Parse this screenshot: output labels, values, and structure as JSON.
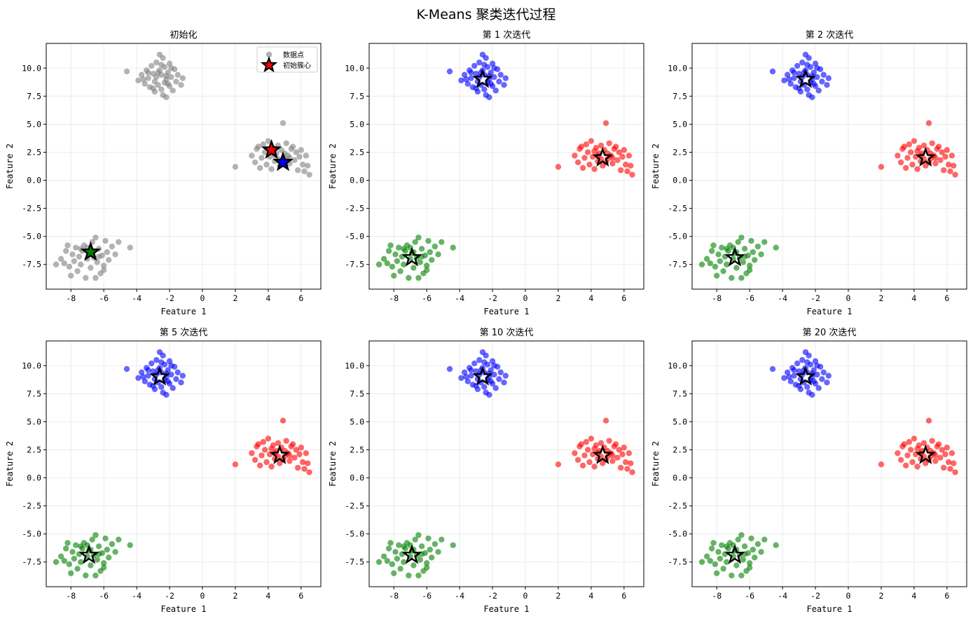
{
  "figure_title": "K-Means 聚类迭代过程",
  "colors": {
    "cluster_0": "#ff0000",
    "cluster_1": "#0000ff",
    "cluster_2": "#008000",
    "uncolored": "#808080",
    "centroid_edge": "#000000",
    "grid": "#e6e6e6"
  },
  "chart_data": [
    {
      "type": "scatter",
      "title": "初始化",
      "xlabel": "Feature 1",
      "ylabel": "Feature 2",
      "xlim": [
        -9.5,
        7.2
      ],
      "ylim": [
        -9.7,
        12.2
      ],
      "xticks": [
        -8,
        -6,
        -4,
        -2,
        0,
        2,
        4,
        6
      ],
      "yticks": [
        -7.5,
        -5.0,
        -2.5,
        0.0,
        2.5,
        5.0,
        7.5,
        10.0
      ],
      "grid": true,
      "legend": {
        "position": "top-right",
        "entries": [
          "数据点",
          "初始簇心"
        ]
      },
      "points_colored": false,
      "centroids": [
        {
          "cluster": 0,
          "x": 4.2,
          "y": 2.7,
          "filled": true
        },
        {
          "cluster": 1,
          "x": 4.9,
          "y": 1.6,
          "filled": true
        },
        {
          "cluster": 2,
          "x": -6.8,
          "y": -6.4,
          "filled": true
        }
      ]
    },
    {
      "type": "scatter",
      "title": "第 1 次迭代",
      "xlabel": "Feature 1",
      "ylabel": "Feature 2",
      "xlim": [
        -9.5,
        7.2
      ],
      "ylim": [
        -9.7,
        12.2
      ],
      "xticks": [
        -8,
        -6,
        -4,
        -2,
        0,
        2,
        4,
        6
      ],
      "yticks": [
        -7.5,
        -5.0,
        -2.5,
        0.0,
        2.5,
        5.0,
        7.5,
        10.0
      ],
      "grid": true,
      "points_colored": true,
      "centroids": [
        {
          "cluster": 0,
          "x": 4.7,
          "y": 2.0,
          "filled": false
        },
        {
          "cluster": 1,
          "x": -2.6,
          "y": 9.0,
          "filled": false
        },
        {
          "cluster": 2,
          "x": -6.9,
          "y": -6.9,
          "filled": false
        }
      ]
    },
    {
      "type": "scatter",
      "title": "第 2 次迭代",
      "xlabel": "Feature 1",
      "ylabel": "Feature 2",
      "xlim": [
        -9.5,
        7.2
      ],
      "ylim": [
        -9.7,
        12.2
      ],
      "xticks": [
        -8,
        -6,
        -4,
        -2,
        0,
        2,
        4,
        6
      ],
      "yticks": [
        -7.5,
        -5.0,
        -2.5,
        0.0,
        2.5,
        5.0,
        7.5,
        10.0
      ],
      "grid": true,
      "points_colored": true,
      "centroids": [
        {
          "cluster": 0,
          "x": 4.7,
          "y": 2.0,
          "filled": false
        },
        {
          "cluster": 1,
          "x": -2.6,
          "y": 9.0,
          "filled": false
        },
        {
          "cluster": 2,
          "x": -6.9,
          "y": -6.9,
          "filled": false
        }
      ]
    },
    {
      "type": "scatter",
      "title": "第 5 次迭代",
      "xlabel": "Feature 1",
      "ylabel": "Feature 2",
      "xlim": [
        -9.5,
        7.2
      ],
      "ylim": [
        -9.7,
        12.2
      ],
      "xticks": [
        -8,
        -6,
        -4,
        -2,
        0,
        2,
        4,
        6
      ],
      "yticks": [
        -7.5,
        -5.0,
        -2.5,
        0.0,
        2.5,
        5.0,
        7.5,
        10.0
      ],
      "grid": true,
      "points_colored": true,
      "centroids": [
        {
          "cluster": 0,
          "x": 4.7,
          "y": 2.0,
          "filled": false
        },
        {
          "cluster": 1,
          "x": -2.6,
          "y": 9.0,
          "filled": false
        },
        {
          "cluster": 2,
          "x": -6.9,
          "y": -6.9,
          "filled": false
        }
      ]
    },
    {
      "type": "scatter",
      "title": "第 10 次迭代",
      "xlabel": "Feature 1",
      "ylabel": "Feature 2",
      "xlim": [
        -9.5,
        7.2
      ],
      "ylim": [
        -9.7,
        12.2
      ],
      "xticks": [
        -8,
        -6,
        -4,
        -2,
        0,
        2,
        4,
        6
      ],
      "yticks": [
        -7.5,
        -5.0,
        -2.5,
        0.0,
        2.5,
        5.0,
        7.5,
        10.0
      ],
      "grid": true,
      "points_colored": true,
      "centroids": [
        {
          "cluster": 0,
          "x": 4.7,
          "y": 2.0,
          "filled": false
        },
        {
          "cluster": 1,
          "x": -2.6,
          "y": 9.0,
          "filled": false
        },
        {
          "cluster": 2,
          "x": -6.9,
          "y": -6.9,
          "filled": false
        }
      ]
    },
    {
      "type": "scatter",
      "title": "第 20 次迭代",
      "xlabel": "Feature 1",
      "ylabel": "Feature 2",
      "xlim": [
        -9.5,
        7.2
      ],
      "ylim": [
        -9.7,
        12.2
      ],
      "xticks": [
        -8,
        -6,
        -4,
        -2,
        0,
        2,
        4,
        6
      ],
      "yticks": [
        -7.5,
        -5.0,
        -2.5,
        0.0,
        2.5,
        5.0,
        7.5,
        10.0
      ],
      "grid": true,
      "points_colored": true,
      "centroids": [
        {
          "cluster": 0,
          "x": 4.7,
          "y": 2.0,
          "filled": false
        },
        {
          "cluster": 1,
          "x": -2.6,
          "y": 9.0,
          "filled": false
        },
        {
          "cluster": 2,
          "x": -6.9,
          "y": -6.9,
          "filled": false
        }
      ]
    }
  ],
  "points": [
    {
      "x": -4.6,
      "y": 9.7,
      "c": 1
    },
    {
      "x": -3.9,
      "y": 8.9,
      "c": 1
    },
    {
      "x": -3.7,
      "y": 9.4,
      "c": 1
    },
    {
      "x": -3.5,
      "y": 8.6,
      "c": 1
    },
    {
      "x": -3.4,
      "y": 9.8,
      "c": 1
    },
    {
      "x": -3.3,
      "y": 9.1,
      "c": 1
    },
    {
      "x": -3.2,
      "y": 8.3,
      "c": 1
    },
    {
      "x": -3.1,
      "y": 10.2,
      "c": 1
    },
    {
      "x": -3.0,
      "y": 9.5,
      "c": 1
    },
    {
      "x": -2.9,
      "y": 8.8,
      "c": 1
    },
    {
      "x": -2.9,
      "y": 7.9,
      "c": 1
    },
    {
      "x": -2.8,
      "y": 10.5,
      "c": 1
    },
    {
      "x": -2.8,
      "y": 9.2,
      "c": 1
    },
    {
      "x": -2.7,
      "y": 8.5,
      "c": 1
    },
    {
      "x": -2.6,
      "y": 11.2,
      "c": 1
    },
    {
      "x": -2.6,
      "y": 9.8,
      "c": 1
    },
    {
      "x": -2.5,
      "y": 8.1,
      "c": 1
    },
    {
      "x": -2.5,
      "y": 9.4,
      "c": 1
    },
    {
      "x": -2.4,
      "y": 7.6,
      "c": 1
    },
    {
      "x": -2.4,
      "y": 10.9,
      "c": 1
    },
    {
      "x": -2.3,
      "y": 8.7,
      "c": 1
    },
    {
      "x": -2.3,
      "y": 10.1,
      "c": 1
    },
    {
      "x": -2.2,
      "y": 9.0,
      "c": 1
    },
    {
      "x": -2.2,
      "y": 7.4,
      "c": 1
    },
    {
      "x": -2.1,
      "y": 9.6,
      "c": 1
    },
    {
      "x": -2.0,
      "y": 8.4,
      "c": 1
    },
    {
      "x": -2.0,
      "y": 10.4,
      "c": 1
    },
    {
      "x": -1.9,
      "y": 9.2,
      "c": 1
    },
    {
      "x": -1.8,
      "y": 8.0,
      "c": 1
    },
    {
      "x": -1.7,
      "y": 9.9,
      "c": 1
    },
    {
      "x": -1.6,
      "y": 8.8,
      "c": 1
    },
    {
      "x": -1.5,
      "y": 9.4,
      "c": 1
    },
    {
      "x": -1.3,
      "y": 8.5,
      "c": 1
    },
    {
      "x": -1.2,
      "y": 9.1,
      "c": 1
    },
    {
      "x": -3.6,
      "y": 9.0,
      "c": 1
    },
    {
      "x": -3.0,
      "y": 8.2,
      "c": 1
    },
    {
      "x": -2.7,
      "y": 9.6,
      "c": 1
    },
    {
      "x": -2.1,
      "y": 8.6,
      "c": 1
    },
    {
      "x": -1.9,
      "y": 10.0,
      "c": 1
    },
    {
      "x": -2.5,
      "y": 10.3,
      "c": 1
    },
    {
      "x": -3.3,
      "y": 9.6,
      "c": 1
    },
    {
      "x": -2.2,
      "y": 9.3,
      "c": 1
    },
    {
      "x": 2.0,
      "y": 1.2,
      "c": 0
    },
    {
      "x": 3.0,
      "y": 2.2,
      "c": 0
    },
    {
      "x": 3.2,
      "y": 1.6,
      "c": 0
    },
    {
      "x": 3.3,
      "y": 2.8,
      "c": 0
    },
    {
      "x": 3.5,
      "y": 1.1,
      "c": 0
    },
    {
      "x": 3.6,
      "y": 2.0,
      "c": 0
    },
    {
      "x": 3.7,
      "y": 3.2,
      "c": 0
    },
    {
      "x": 3.8,
      "y": 2.5,
      "c": 0
    },
    {
      "x": 3.9,
      "y": 1.4,
      "c": 0
    },
    {
      "x": 4.0,
      "y": 3.5,
      "c": 0
    },
    {
      "x": 4.1,
      "y": 2.1,
      "c": 0
    },
    {
      "x": 4.2,
      "y": 1.0,
      "c": 0
    },
    {
      "x": 4.3,
      "y": 2.9,
      "c": 0
    },
    {
      "x": 4.4,
      "y": 1.7,
      "c": 0
    },
    {
      "x": 4.5,
      "y": 2.4,
      "c": 0
    },
    {
      "x": 4.6,
      "y": 3.1,
      "c": 0
    },
    {
      "x": 4.7,
      "y": 1.3,
      "c": 0
    },
    {
      "x": 4.8,
      "y": 2.7,
      "c": 0
    },
    {
      "x": 4.9,
      "y": 5.1,
      "c": 0
    },
    {
      "x": 5.0,
      "y": 1.9,
      "c": 0
    },
    {
      "x": 5.1,
      "y": 3.3,
      "c": 0
    },
    {
      "x": 5.2,
      "y": 2.2,
      "c": 0
    },
    {
      "x": 5.3,
      "y": 1.5,
      "c": 0
    },
    {
      "x": 5.4,
      "y": 2.8,
      "c": 0
    },
    {
      "x": 5.5,
      "y": 3.0,
      "c": 0
    },
    {
      "x": 5.6,
      "y": 1.8,
      "c": 0
    },
    {
      "x": 5.7,
      "y": 2.5,
      "c": 0
    },
    {
      "x": 5.8,
      "y": 0.9,
      "c": 0
    },
    {
      "x": 5.9,
      "y": 2.1,
      "c": 0
    },
    {
      "x": 6.0,
      "y": 2.7,
      "c": 0
    },
    {
      "x": 6.1,
      "y": 1.4,
      "c": 0
    },
    {
      "x": 6.3,
      "y": 2.2,
      "c": 0
    },
    {
      "x": 6.4,
      "y": 1.3,
      "c": 0
    },
    {
      "x": 6.5,
      "y": 0.5,
      "c": 0
    },
    {
      "x": 6.2,
      "y": 0.8,
      "c": 0
    },
    {
      "x": 4.4,
      "y": 2.2,
      "c": 0
    },
    {
      "x": 5.0,
      "y": 2.4,
      "c": 0
    },
    {
      "x": 4.6,
      "y": 1.9,
      "c": 0
    },
    {
      "x": 3.4,
      "y": 3.0,
      "c": 0
    },
    {
      "x": 5.3,
      "y": 2.0,
      "c": 0
    },
    {
      "x": 4.9,
      "y": 1.6,
      "c": 0
    },
    {
      "x": 4.2,
      "y": 2.6,
      "c": 0
    },
    {
      "x": -8.9,
      "y": -7.5,
      "c": 2
    },
    {
      "x": -8.6,
      "y": -7.0,
      "c": 2
    },
    {
      "x": -8.3,
      "y": -6.3,
      "c": 2
    },
    {
      "x": -8.2,
      "y": -5.8,
      "c": 2
    },
    {
      "x": -8.1,
      "y": -7.7,
      "c": 2
    },
    {
      "x": -8.0,
      "y": -8.5,
      "c": 2
    },
    {
      "x": -7.9,
      "y": -6.6,
      "c": 2
    },
    {
      "x": -7.8,
      "y": -7.2,
      "c": 2
    },
    {
      "x": -7.7,
      "y": -6.0,
      "c": 2
    },
    {
      "x": -7.6,
      "y": -8.1,
      "c": 2
    },
    {
      "x": -7.5,
      "y": -6.8,
      "c": 2
    },
    {
      "x": -7.4,
      "y": -7.5,
      "c": 2
    },
    {
      "x": -7.3,
      "y": -6.3,
      "c": 2
    },
    {
      "x": -7.2,
      "y": -5.8,
      "c": 2
    },
    {
      "x": -7.1,
      "y": -8.7,
      "c": 2
    },
    {
      "x": -7.0,
      "y": -7.0,
      "c": 2
    },
    {
      "x": -6.9,
      "y": -6.5,
      "c": 2
    },
    {
      "x": -6.8,
      "y": -7.8,
      "c": 2
    },
    {
      "x": -6.7,
      "y": -5.5,
      "c": 2
    },
    {
      "x": -6.6,
      "y": -6.9,
      "c": 2
    },
    {
      "x": -6.5,
      "y": -5.1,
      "c": 2
    },
    {
      "x": -6.4,
      "y": -7.3,
      "c": 2
    },
    {
      "x": -6.3,
      "y": -6.1,
      "c": 2
    },
    {
      "x": -6.2,
      "y": -8.3,
      "c": 2
    },
    {
      "x": -6.1,
      "y": -6.7,
      "c": 2
    },
    {
      "x": -6.0,
      "y": -7.6,
      "c": 2
    },
    {
      "x": -5.9,
      "y": -5.4,
      "c": 2
    },
    {
      "x": -5.8,
      "y": -6.4,
      "c": 2
    },
    {
      "x": -5.7,
      "y": -7.1,
      "c": 2
    },
    {
      "x": -5.5,
      "y": -5.9,
      "c": 2
    },
    {
      "x": -5.3,
      "y": -6.6,
      "c": 2
    },
    {
      "x": -5.1,
      "y": -5.5,
      "c": 2
    },
    {
      "x": -4.4,
      "y": -6.0,
      "c": 2
    },
    {
      "x": -6.5,
      "y": -8.7,
      "c": 2
    },
    {
      "x": -7.4,
      "y": -6.1,
      "c": 2
    },
    {
      "x": -6.0,
      "y": -8.0,
      "c": 2
    },
    {
      "x": -8.4,
      "y": -7.4,
      "c": 2
    },
    {
      "x": -7.0,
      "y": -6.0,
      "c": 2
    },
    {
      "x": -6.8,
      "y": -6.4,
      "c": 2
    },
    {
      "x": -6.3,
      "y": -6.8,
      "c": 2
    }
  ]
}
